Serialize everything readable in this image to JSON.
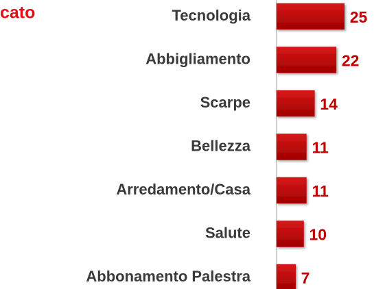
{
  "chart_data": {
    "type": "bar",
    "orientation": "horizontal",
    "title": "cato",
    "categories": [
      "Tecnologia",
      "Abbigliamento",
      "Scarpe",
      "Bellezza",
      "Arredamento/Casa",
      "Salute",
      "Abbonamento Palestra"
    ],
    "values": [
      25,
      22,
      14,
      11,
      11,
      10,
      7
    ],
    "color": "#c00000",
    "title_color": "#e0101a",
    "label_color": "#c00000"
  }
}
